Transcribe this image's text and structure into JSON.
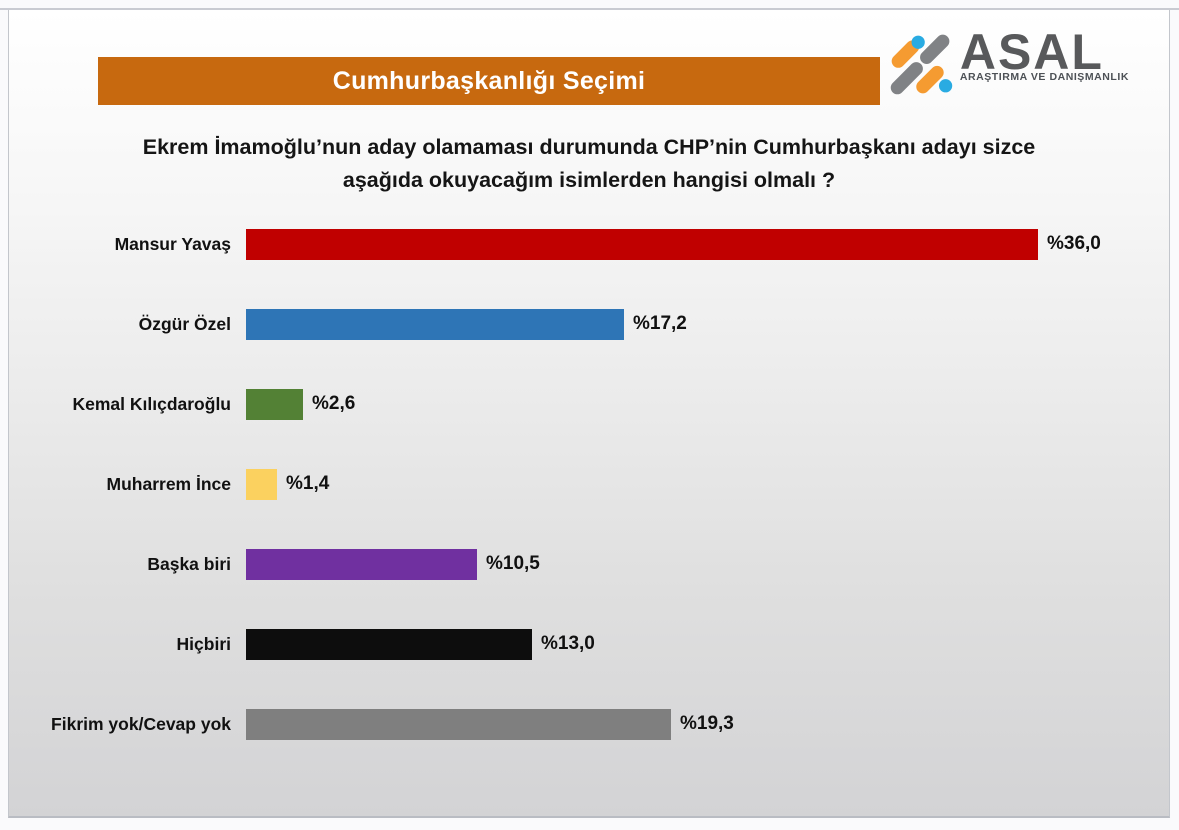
{
  "header": {
    "title": "Cumhurbaşkanlığı Seçimi",
    "logo": {
      "name": "ASAL",
      "subtitle": "ARAŞTIRMA VE DANIŞMANLIK"
    }
  },
  "question": {
    "line1": "Ekrem İmamoğlu’nun aday olamaması durumunda CHP’nin Cumhurbaşkanı adayı sizce",
    "line2": "aşağıda okuyacağım isimlerden hangisi olmalı ?"
  },
  "chart_data": {
    "type": "bar",
    "orientation": "horizontal",
    "title": "Cumhurbaşkanlığı Seçimi",
    "categories": [
      "Mansur Yavaş",
      "Özgür Özel",
      "Kemal Kılıçdaroğlu",
      "Muharrem İnce",
      "Başka biri",
      "Hiçbiri",
      "Fikrim yok/Cevap yok"
    ],
    "values": [
      36.0,
      17.2,
      2.6,
      1.4,
      10.5,
      13.0,
      19.3
    ],
    "value_labels": [
      "%36,0",
      "%17,2",
      "%2,6",
      "%1,4",
      "%10,5",
      "%13,0",
      "%19,3"
    ],
    "bar_colors": [
      "#C00000",
      "#2E75B6",
      "#538135",
      "#FBD15F",
      "#7030A0",
      "#0D0D0D",
      "#7F7F7F"
    ],
    "value_prefix": "%",
    "decimal_separator": ",",
    "xlim": [
      0,
      36
    ],
    "grid": false,
    "legend": false
  },
  "colors": {
    "title_bar_bg": "#C7690F",
    "title_text": "#FFFFFF",
    "logo_orange": "#F59B31",
    "logo_gray": "#808285",
    "logo_blue": "#29ABE2",
    "logo_text": "#58595B",
    "logo_subtitle": "#4D5156"
  }
}
